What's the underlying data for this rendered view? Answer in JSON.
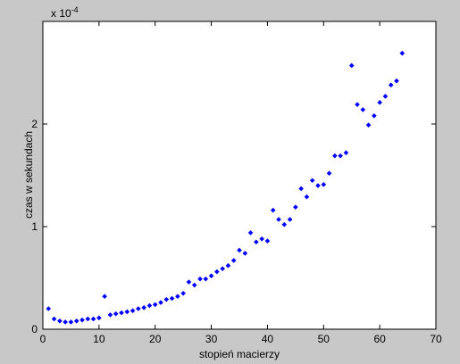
{
  "chart_data": {
    "type": "scatter",
    "y_exponent": {
      "base": "x 10",
      "power": "-4"
    },
    "xlabel": "stopień macierzy",
    "ylabel": "czas w sekundach",
    "x": [
      1,
      2,
      3,
      4,
      5,
      6,
      7,
      8,
      9,
      10,
      11,
      12,
      13,
      14,
      15,
      16,
      17,
      18,
      19,
      20,
      21,
      22,
      23,
      24,
      25,
      26,
      27,
      28,
      29,
      30,
      31,
      32,
      33,
      34,
      35,
      36,
      37,
      38,
      39,
      40,
      41,
      42,
      43,
      44,
      45,
      46,
      47,
      48,
      49,
      50,
      51,
      52,
      53,
      54,
      55,
      56,
      57,
      58,
      59,
      60,
      61,
      62,
      63,
      64
    ],
    "y": [
      0.2,
      0.1,
      0.08,
      0.07,
      0.07,
      0.08,
      0.09,
      0.1,
      0.1,
      0.11,
      0.32,
      0.14,
      0.15,
      0.16,
      0.17,
      0.18,
      0.2,
      0.21,
      0.23,
      0.24,
      0.26,
      0.29,
      0.3,
      0.32,
      0.35,
      0.46,
      0.43,
      0.49,
      0.49,
      0.52,
      0.56,
      0.59,
      0.62,
      0.67,
      0.77,
      0.74,
      0.94,
      0.85,
      0.88,
      0.86,
      1.16,
      1.07,
      1.02,
      1.07,
      1.19,
      1.37,
      1.29,
      1.45,
      1.4,
      1.41,
      1.52,
      1.69,
      1.69,
      1.72,
      2.57,
      2.19,
      2.14,
      1.99,
      2.08,
      2.21,
      2.27,
      2.38,
      2.42,
      2.69
    ],
    "color": "#0000ff",
    "xlim": [
      0,
      70
    ],
    "xticks": [
      0,
      10,
      20,
      30,
      40,
      50,
      60,
      70
    ],
    "ylim": [
      0,
      3
    ],
    "yticks": [
      0,
      1,
      2
    ]
  }
}
